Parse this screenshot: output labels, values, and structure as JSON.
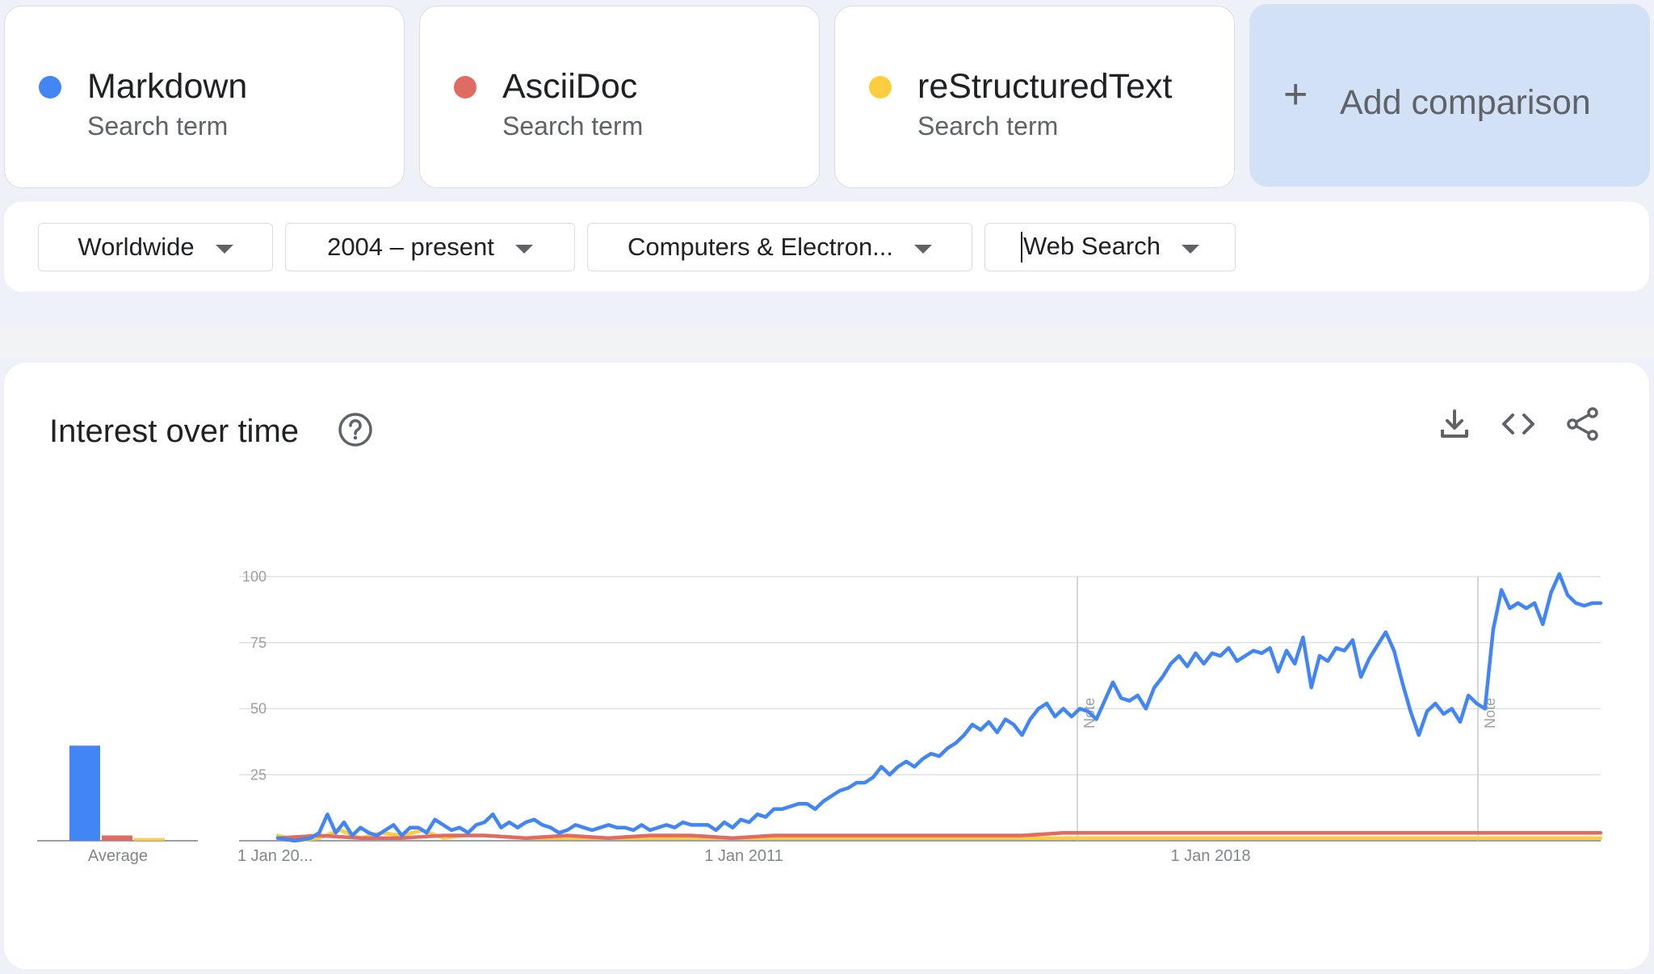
{
  "terms": [
    {
      "name": "Markdown",
      "subtitle": "Search term",
      "color": "#4285f4"
    },
    {
      "name": "AsciiDoc",
      "subtitle": "Search term",
      "color": "#e06b63"
    },
    {
      "name": "reStructuredText",
      "subtitle": "Search term",
      "color": "#fbcd3f"
    }
  ],
  "add_comparison": {
    "icon": "plus-icon",
    "label": "Add comparison"
  },
  "filters": {
    "region": "Worldwide",
    "time": "2004 – present",
    "category": "Computers & Electron...",
    "property": "Web Search"
  },
  "panel": {
    "title": "Interest over time",
    "help_icon": "help-circle-icon",
    "actions": [
      "download-icon",
      "embed-code-icon",
      "share-icon"
    ]
  },
  "chart_data": {
    "type": "line",
    "y_ticks": [
      25,
      50,
      75,
      100
    ],
    "ylim": [
      0,
      100
    ],
    "average_label": "Average",
    "x_labels": [
      "1 Jan 20...",
      "1 Jan 2011",
      "1 Jan 2018"
    ],
    "notes": [
      "Note",
      "Note"
    ],
    "grid": true,
    "averages": [
      {
        "name": "Markdown",
        "value": 36
      },
      {
        "name": "AsciiDoc",
        "value": 2
      },
      {
        "name": "reStructuredText",
        "value": 1
      }
    ],
    "series": [
      {
        "name": "Markdown",
        "color": "#4285f4",
        "points": [
          [
            2004.0,
            1
          ],
          [
            2004.4,
            0
          ],
          [
            2004.8,
            1
          ],
          [
            2005.0,
            3
          ],
          [
            2005.2,
            10
          ],
          [
            2005.4,
            3
          ],
          [
            2005.6,
            7
          ],
          [
            2005.8,
            2
          ],
          [
            2006.0,
            5
          ],
          [
            2006.2,
            3
          ],
          [
            2006.4,
            2
          ],
          [
            2006.6,
            4
          ],
          [
            2006.8,
            6
          ],
          [
            2007.0,
            2
          ],
          [
            2007.2,
            5
          ],
          [
            2007.4,
            5
          ],
          [
            2007.6,
            3
          ],
          [
            2007.8,
            8
          ],
          [
            2008.0,
            6
          ],
          [
            2008.2,
            4
          ],
          [
            2008.4,
            5
          ],
          [
            2008.6,
            3
          ],
          [
            2008.8,
            6
          ],
          [
            2009.0,
            7
          ],
          [
            2009.2,
            10
          ],
          [
            2009.4,
            5
          ],
          [
            2009.6,
            7
          ],
          [
            2009.8,
            5
          ],
          [
            2010.0,
            7
          ],
          [
            2010.2,
            8
          ],
          [
            2010.4,
            6
          ],
          [
            2010.6,
            5
          ],
          [
            2010.8,
            3
          ],
          [
            2011.0,
            4
          ],
          [
            2011.2,
            6
          ],
          [
            2011.4,
            5
          ],
          [
            2011.6,
            4
          ],
          [
            2011.8,
            5
          ],
          [
            2012.0,
            6
          ],
          [
            2012.2,
            5
          ],
          [
            2012.4,
            5
          ],
          [
            2012.6,
            4
          ],
          [
            2012.8,
            6
          ],
          [
            2013.0,
            4
          ],
          [
            2013.2,
            5
          ],
          [
            2013.4,
            6
          ],
          [
            2013.6,
            5
          ],
          [
            2013.8,
            7
          ],
          [
            2014.0,
            6
          ],
          [
            2014.2,
            6
          ],
          [
            2014.4,
            6
          ],
          [
            2014.6,
            4
          ],
          [
            2014.8,
            7
          ],
          [
            2015.0,
            5
          ],
          [
            2015.2,
            8
          ],
          [
            2015.4,
            7
          ],
          [
            2015.6,
            10
          ],
          [
            2015.8,
            9
          ],
          [
            2016.0,
            12
          ],
          [
            2016.2,
            12
          ],
          [
            2016.4,
            13
          ],
          [
            2016.6,
            14
          ],
          [
            2016.8,
            14
          ],
          [
            2017.0,
            12
          ],
          [
            2017.2,
            15
          ],
          [
            2017.4,
            17
          ],
          [
            2017.6,
            19
          ],
          [
            2017.8,
            20
          ],
          [
            2018.0,
            22
          ],
          [
            2018.2,
            22
          ],
          [
            2018.4,
            24
          ],
          [
            2018.6,
            28
          ],
          [
            2018.8,
            25
          ],
          [
            2019.0,
            28
          ],
          [
            2019.2,
            30
          ],
          [
            2019.4,
            28
          ],
          [
            2019.6,
            31
          ],
          [
            2019.8,
            33
          ],
          [
            2020.0,
            32
          ],
          [
            2020.2,
            35
          ],
          [
            2020.4,
            37
          ],
          [
            2020.6,
            40
          ],
          [
            2020.8,
            44
          ],
          [
            2021.0,
            42
          ],
          [
            2021.2,
            45
          ],
          [
            2021.4,
            41
          ],
          [
            2021.6,
            46
          ],
          [
            2021.8,
            44
          ],
          [
            2022.0,
            40
          ],
          [
            2022.2,
            46
          ],
          [
            2022.4,
            50
          ],
          [
            2022.6,
            52
          ],
          [
            2022.8,
            47
          ],
          [
            2023.0,
            50
          ],
          [
            2023.2,
            47
          ],
          [
            2023.4,
            50
          ],
          [
            2023.6,
            49
          ],
          [
            2023.8,
            46
          ],
          [
            2024.0,
            53
          ],
          [
            2024.2,
            60
          ],
          [
            2024.4,
            54
          ],
          [
            2024.6,
            53
          ],
          [
            2024.8,
            55
          ],
          [
            2025.0,
            50
          ],
          [
            2025.2,
            58
          ],
          [
            2025.4,
            62
          ],
          [
            2025.6,
            67
          ],
          [
            2025.8,
            70
          ],
          [
            2026.0,
            66
          ],
          [
            2026.2,
            71
          ],
          [
            2026.4,
            67
          ],
          [
            2026.6,
            71
          ],
          [
            2026.8,
            70
          ],
          [
            2027.0,
            73
          ],
          [
            2027.2,
            68
          ],
          [
            2027.4,
            70
          ],
          [
            2027.6,
            72
          ],
          [
            2027.8,
            71
          ],
          [
            2028.0,
            73
          ],
          [
            2028.2,
            64
          ],
          [
            2028.4,
            72
          ],
          [
            2028.6,
            67
          ],
          [
            2028.8,
            77
          ],
          [
            2029.0,
            58
          ],
          [
            2029.2,
            70
          ],
          [
            2029.4,
            68
          ],
          [
            2029.6,
            73
          ],
          [
            2029.8,
            72
          ],
          [
            2030.0,
            76
          ],
          [
            2030.2,
            62
          ],
          [
            2030.4,
            69
          ],
          [
            2030.6,
            74
          ],
          [
            2030.8,
            79
          ],
          [
            2031.0,
            72
          ],
          [
            2031.2,
            60
          ],
          [
            2031.4,
            49
          ],
          [
            2031.6,
            40
          ],
          [
            2031.8,
            49
          ],
          [
            2032.0,
            52
          ],
          [
            2032.2,
            48
          ],
          [
            2032.4,
            50
          ],
          [
            2032.6,
            45
          ],
          [
            2032.8,
            55
          ],
          [
            2033.0,
            52
          ],
          [
            2033.2,
            50
          ],
          [
            2033.4,
            80
          ],
          [
            2033.6,
            95
          ],
          [
            2033.8,
            88
          ],
          [
            2034.0,
            90
          ],
          [
            2034.2,
            88
          ],
          [
            2034.4,
            90
          ],
          [
            2034.6,
            82
          ],
          [
            2034.8,
            94
          ],
          [
            2035.0,
            101
          ],
          [
            2035.2,
            93
          ],
          [
            2035.4,
            90
          ],
          [
            2035.6,
            89
          ],
          [
            2035.8,
            90
          ],
          [
            2036.0,
            90
          ]
        ]
      },
      {
        "name": "AsciiDoc",
        "color": "#e06b63",
        "points": [
          [
            2004.0,
            1
          ],
          [
            2005.0,
            2
          ],
          [
            2006.0,
            1
          ],
          [
            2007.0,
            1
          ],
          [
            2008.0,
            2
          ],
          [
            2009.0,
            2
          ],
          [
            2010.0,
            1
          ],
          [
            2011.0,
            2
          ],
          [
            2012.0,
            1
          ],
          [
            2013.0,
            2
          ],
          [
            2014.0,
            2
          ],
          [
            2015.0,
            1
          ],
          [
            2016.0,
            2
          ],
          [
            2017.0,
            2
          ],
          [
            2018.0,
            2
          ],
          [
            2019.0,
            2
          ],
          [
            2020.0,
            2
          ],
          [
            2021.0,
            2
          ],
          [
            2022.0,
            2
          ],
          [
            2023.0,
            3
          ],
          [
            2024.0,
            3
          ],
          [
            2025.0,
            3
          ],
          [
            2026.0,
            3
          ],
          [
            2027.0,
            3
          ],
          [
            2028.0,
            3
          ],
          [
            2029.0,
            3
          ],
          [
            2030.0,
            3
          ],
          [
            2031.0,
            3
          ],
          [
            2032.0,
            3
          ],
          [
            2033.0,
            3
          ],
          [
            2034.0,
            3
          ],
          [
            2035.0,
            3
          ],
          [
            2036.0,
            3
          ]
        ]
      },
      {
        "name": "reStructuredText",
        "color": "#fbcd3f",
        "points": [
          [
            2004.0,
            2
          ],
          [
            2004.5,
            0
          ],
          [
            2005.0,
            1
          ],
          [
            2005.5,
            4
          ],
          [
            2006.0,
            1
          ],
          [
            2006.5,
            3
          ],
          [
            2007.0,
            2
          ],
          [
            2007.5,
            4
          ],
          [
            2008.0,
            1
          ],
          [
            2008.5,
            2
          ],
          [
            2009.0,
            2
          ],
          [
            2010.0,
            1
          ],
          [
            2011.0,
            1
          ],
          [
            2012.0,
            1
          ],
          [
            2013.0,
            1
          ],
          [
            2014.0,
            1
          ],
          [
            2015.0,
            1
          ],
          [
            2016.0,
            1
          ],
          [
            2017.0,
            1
          ],
          [
            2018.0,
            1
          ],
          [
            2019.0,
            1
          ],
          [
            2020.0,
            1
          ],
          [
            2021.0,
            1
          ],
          [
            2022.0,
            1
          ],
          [
            2023.0,
            1
          ],
          [
            2024.0,
            1
          ],
          [
            2025.0,
            1
          ],
          [
            2026.0,
            1
          ],
          [
            2027.0,
            1
          ],
          [
            2028.0,
            1
          ],
          [
            2029.0,
            1
          ],
          [
            2030.0,
            1
          ],
          [
            2031.0,
            1
          ],
          [
            2032.0,
            1
          ],
          [
            2033.0,
            1
          ],
          [
            2034.0,
            1
          ],
          [
            2035.0,
            1
          ],
          [
            2036.0,
            1
          ]
        ]
      }
    ]
  }
}
